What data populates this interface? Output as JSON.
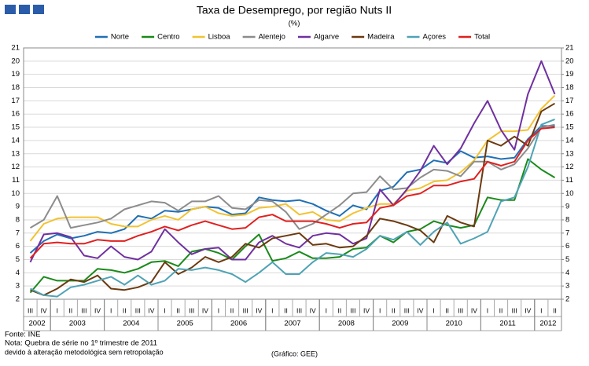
{
  "chart_data": {
    "type": "line",
    "title": "Taxa de Desemprego, por região Nuts II",
    "subtitle": "(%)",
    "categories": [
      "III",
      "IV",
      "I",
      "II",
      "III",
      "IV",
      "I",
      "II",
      "III",
      "IV",
      "I",
      "II",
      "III",
      "IV",
      "I",
      "II",
      "III",
      "IV",
      "I",
      "II",
      "III",
      "IV",
      "I",
      "II",
      "III",
      "IV",
      "I",
      "II",
      "III",
      "IV",
      "I",
      "II",
      "III",
      "IV",
      "I",
      "II",
      "III",
      "IV",
      "I",
      "II"
    ],
    "years": [
      "2002",
      "2003",
      "2004",
      "2005",
      "2006",
      "2007",
      "2008",
      "2009",
      "2010",
      "2011",
      "2012"
    ],
    "series": [
      {
        "name": "Norte",
        "color": "#1f6fb5",
        "values": [
          5.5,
          6.4,
          6.9,
          6.6,
          6.8,
          7.1,
          7.0,
          7.3,
          8.3,
          8.1,
          8.7,
          8.6,
          8.8,
          9.0,
          8.9,
          8.4,
          8.5,
          9.7,
          9.5,
          9.4,
          9.5,
          9.2,
          8.7,
          8.3,
          9.1,
          8.8,
          10.2,
          10.5,
          11.6,
          11.8,
          12.5,
          12.3,
          13.2,
          12.7,
          12.8,
          12.6,
          12.7,
          14.1,
          15.1,
          15.1
        ]
      },
      {
        "name": "Centro",
        "color": "#1a8a1a",
        "values": [
          2.5,
          3.7,
          3.4,
          3.4,
          3.4,
          4.3,
          4.2,
          4.0,
          4.3,
          4.8,
          4.9,
          4.5,
          5.6,
          5.8,
          5.5,
          5.0,
          6.0,
          6.9,
          4.9,
          5.1,
          5.6,
          5.1,
          5.1,
          5.2,
          5.8,
          5.9,
          6.8,
          6.3,
          7.1,
          7.3,
          7.9,
          7.6,
          7.4,
          7.6,
          9.7,
          9.5,
          9.5,
          12.6,
          11.8,
          11.2
        ]
      },
      {
        "name": "Lisboa",
        "color": "#f2c230",
        "values": [
          6.4,
          7.7,
          8.1,
          8.2,
          8.2,
          8.2,
          7.7,
          7.5,
          7.5,
          8.0,
          8.3,
          8.0,
          8.8,
          9.0,
          8.5,
          8.3,
          8.4,
          8.9,
          9.0,
          9.2,
          8.4,
          8.6,
          8.0,
          7.9,
          8.5,
          8.9,
          9.2,
          9.2,
          10.2,
          10.4,
          10.9,
          11.0,
          11.6,
          12.5,
          14.0,
          14.7,
          14.7,
          14.8,
          16.4,
          17.4
        ]
      },
      {
        "name": "Alentejo",
        "color": "#8c8c8c",
        "values": [
          7.4,
          8.0,
          9.8,
          7.4,
          7.6,
          7.8,
          8.1,
          8.8,
          9.1,
          9.4,
          9.3,
          8.7,
          9.4,
          9.4,
          9.8,
          8.9,
          8.8,
          9.5,
          9.4,
          8.6,
          7.3,
          7.7,
          8.4,
          9.1,
          10.0,
          10.1,
          11.3,
          10.3,
          10.4,
          11.2,
          11.8,
          11.7,
          11.3,
          12.4,
          12.4,
          11.8,
          12.2,
          13.4,
          15.0,
          15.2
        ]
      },
      {
        "name": "Algarve",
        "color": "#7030a0",
        "values": [
          4.8,
          6.9,
          7.0,
          6.7,
          5.3,
          5.1,
          6.0,
          5.2,
          5.0,
          5.6,
          7.3,
          6.3,
          5.4,
          5.8,
          5.9,
          5.0,
          5.0,
          6.3,
          6.8,
          6.2,
          5.9,
          6.8,
          7.0,
          6.9,
          6.2,
          6.6,
          10.3,
          9.1,
          10.3,
          11.7,
          13.6,
          12.2,
          13.4,
          15.3,
          17.0,
          14.8,
          13.3,
          17.5,
          20.0,
          17.5
        ]
      },
      {
        "name": "Madeira",
        "color": "#6b3a10",
        "values": [
          2.7,
          2.3,
          2.8,
          3.5,
          3.3,
          3.8,
          2.8,
          2.7,
          2.9,
          3.3,
          4.8,
          3.9,
          4.4,
          5.2,
          4.8,
          5.2,
          6.2,
          5.9,
          6.6,
          6.8,
          7.0,
          6.1,
          6.2,
          5.9,
          6.0,
          6.8,
          8.1,
          7.9,
          7.6,
          7.2,
          6.3,
          8.3,
          7.8,
          7.5,
          14.0,
          13.6,
          14.3,
          13.6,
          16.2,
          16.8
        ]
      },
      {
        "name": "Açores",
        "color": "#4fa3b5",
        "values": [
          2.8,
          2.3,
          2.2,
          2.9,
          3.1,
          3.4,
          3.7,
          3.1,
          3.8,
          3.1,
          3.4,
          4.3,
          4.2,
          4.4,
          4.2,
          3.9,
          3.3,
          4.0,
          4.8,
          3.9,
          3.9,
          4.8,
          5.5,
          5.4,
          5.2,
          5.8,
          6.8,
          6.5,
          7.1,
          6.1,
          7.1,
          7.8,
          6.2,
          6.6,
          7.1,
          9.4,
          9.7,
          12.0,
          15.2,
          15.6
        ]
      },
      {
        "name": "Total",
        "color": "#e02020",
        "values": [
          5.1,
          6.2,
          6.3,
          6.2,
          6.2,
          6.5,
          6.4,
          6.4,
          6.8,
          7.1,
          7.5,
          7.2,
          7.6,
          7.9,
          7.6,
          7.3,
          7.4,
          8.2,
          8.4,
          7.9,
          7.9,
          7.9,
          7.7,
          7.4,
          7.7,
          7.8,
          8.9,
          9.1,
          9.8,
          10.0,
          10.6,
          10.6,
          10.9,
          11.1,
          12.4,
          12.1,
          12.4,
          14.0,
          14.9,
          15.0
        ]
      }
    ],
    "ylim": [
      2,
      21
    ],
    "yticks": [
      2,
      3,
      4,
      5,
      6,
      7,
      8,
      9,
      10,
      11,
      12,
      13,
      14,
      15,
      16,
      17,
      18,
      19,
      20,
      21
    ],
    "y2lim": [
      2,
      21
    ],
    "y2ticks": [
      2,
      3,
      4,
      5,
      6,
      7,
      8,
      9,
      10,
      11,
      12,
      13,
      14,
      15,
      16,
      17,
      18,
      19,
      20,
      21
    ],
    "grid": true,
    "source": "Fonte: INE",
    "note": "Nota: Quebra de série no 1º trimestre de 2011",
    "note2": "devido à alteração metodológica sem retropolação",
    "credit": "(Gráfico: GEE)"
  }
}
